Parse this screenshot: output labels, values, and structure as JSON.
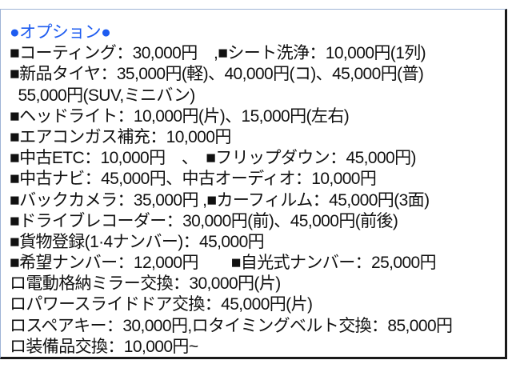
{
  "heading": "●オプション●",
  "lines": [
    "■コーティング：30,000円　,■シート洗浄：10,000円(1列)",
    "■新品タイヤ：35,000円(軽)、40,000円(コ)、45,000円(普)",
    "  55,000円(SUV,ミニバン)",
    "■ヘッドライト：10,000円(片)、15,000円(左右)",
    "■エアコンガス補充：10,000円",
    "■中古ETC：10,000円　、　■フリップダウン：45,000円)",
    "■中古ナビ：45,000円、中古オーディオ：10,000円",
    "■バックカメラ：35,000円 ,■カーフィルム：45,000円(3面)",
    "■ドライブレコーダー：30,000円(前)、45,000円(前後)",
    "■貨物登録(1·4ナンバー)：45,000円",
    "■希望ナンバー：12,000円　　■自光式ナンバー：25,000円",
    "ロ電動格納ミラー交換：30,000円(片)",
    "ロパワースライドドア交換：45,000円(片)",
    "ロスペアキー：30,000円,ロタイミングベルト交換：85,000円",
    "ロ装備品交換：10,000円~"
  ],
  "colors": {
    "heading": "#1e5cf0",
    "text": "#111111"
  }
}
